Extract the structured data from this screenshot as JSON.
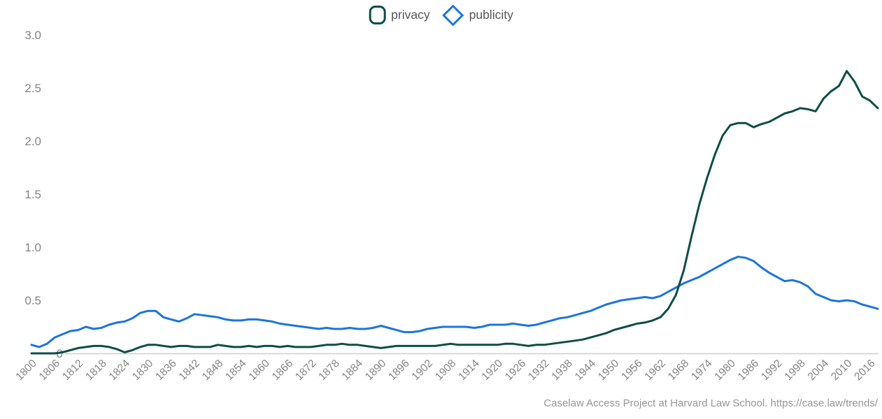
{
  "legend": {
    "items": [
      {
        "label": "privacy",
        "color": "#0d4e44",
        "marker": "rounded-square-outline"
      },
      {
        "label": "publicity",
        "color": "#1d73e0",
        "marker": "diamond-outline"
      }
    ]
  },
  "footer": {
    "text": "Caselaw Access Project at Harvard Law School. https://case.law/trends/"
  },
  "chart_data": {
    "type": "line",
    "title": "",
    "xlabel": "",
    "ylabel": "",
    "xlim": [
      1800,
      2018
    ],
    "ylim": [
      0,
      3.0
    ],
    "grid": false,
    "legend_position": "top-center",
    "axis_color": "#cccccc",
    "tick_label_color": "#848484",
    "y_ticks": [
      0,
      0.5,
      1.0,
      1.5,
      2.0,
      2.5,
      3.0
    ],
    "y_tick_labels": [
      "0",
      "0.5",
      "1.0",
      "1.5",
      "2.0",
      "2.5",
      "3.0"
    ],
    "x_ticks": [
      1800,
      1806,
      1812,
      1818,
      1824,
      1830,
      1836,
      1842,
      1848,
      1854,
      1860,
      1866,
      1872,
      1878,
      1884,
      1890,
      1896,
      1902,
      1908,
      1914,
      1920,
      1926,
      1932,
      1938,
      1944,
      1950,
      1956,
      1962,
      1968,
      1974,
      1980,
      1986,
      1992,
      1998,
      2004,
      2010,
      2016
    ],
    "x": [
      1800,
      1802,
      1804,
      1806,
      1808,
      1810,
      1812,
      1814,
      1816,
      1818,
      1820,
      1822,
      1824,
      1826,
      1828,
      1830,
      1832,
      1834,
      1836,
      1838,
      1840,
      1842,
      1844,
      1846,
      1848,
      1850,
      1852,
      1854,
      1856,
      1858,
      1860,
      1862,
      1864,
      1866,
      1868,
      1870,
      1872,
      1874,
      1876,
      1878,
      1880,
      1882,
      1884,
      1886,
      1888,
      1890,
      1892,
      1894,
      1896,
      1898,
      1900,
      1902,
      1904,
      1906,
      1908,
      1910,
      1912,
      1914,
      1916,
      1918,
      1920,
      1922,
      1924,
      1926,
      1928,
      1930,
      1932,
      1934,
      1936,
      1938,
      1940,
      1942,
      1944,
      1946,
      1948,
      1950,
      1952,
      1954,
      1956,
      1958,
      1960,
      1962,
      1964,
      1966,
      1968,
      1970,
      1972,
      1974,
      1976,
      1978,
      1980,
      1982,
      1984,
      1986,
      1988,
      1990,
      1992,
      1994,
      1996,
      1998,
      2000,
      2002,
      2004,
      2006,
      2008,
      2010,
      2012,
      2014,
      2016,
      2018
    ],
    "series": [
      {
        "name": "privacy",
        "color": "#0d4e44",
        "values": [
          0.0,
          0.0,
          0.0,
          0.0,
          0.01,
          0.03,
          0.05,
          0.06,
          0.07,
          0.07,
          0.06,
          0.04,
          0.01,
          0.03,
          0.06,
          0.08,
          0.08,
          0.07,
          0.06,
          0.07,
          0.07,
          0.06,
          0.06,
          0.06,
          0.08,
          0.07,
          0.06,
          0.06,
          0.07,
          0.06,
          0.07,
          0.07,
          0.06,
          0.07,
          0.06,
          0.06,
          0.06,
          0.07,
          0.08,
          0.08,
          0.09,
          0.08,
          0.08,
          0.07,
          0.06,
          0.05,
          0.06,
          0.07,
          0.07,
          0.07,
          0.07,
          0.07,
          0.07,
          0.08,
          0.09,
          0.08,
          0.08,
          0.08,
          0.08,
          0.08,
          0.08,
          0.09,
          0.09,
          0.08,
          0.07,
          0.08,
          0.08,
          0.09,
          0.1,
          0.11,
          0.12,
          0.13,
          0.15,
          0.17,
          0.19,
          0.22,
          0.24,
          0.26,
          0.28,
          0.29,
          0.31,
          0.34,
          0.42,
          0.55,
          0.78,
          1.1,
          1.4,
          1.65,
          1.87,
          2.05,
          2.15,
          2.17,
          2.17,
          2.13,
          2.16,
          2.18,
          2.22,
          2.26,
          2.28,
          2.31,
          2.3,
          2.28,
          2.4,
          2.47,
          2.52,
          2.66,
          2.56,
          2.42,
          2.38,
          2.31
        ]
      },
      {
        "name": "publicity",
        "color": "#1d73e0",
        "values": [
          0.08,
          0.06,
          0.09,
          0.15,
          0.18,
          0.21,
          0.22,
          0.25,
          0.23,
          0.24,
          0.27,
          0.29,
          0.3,
          0.33,
          0.38,
          0.4,
          0.4,
          0.34,
          0.32,
          0.3,
          0.33,
          0.37,
          0.36,
          0.35,
          0.34,
          0.32,
          0.31,
          0.31,
          0.32,
          0.32,
          0.31,
          0.3,
          0.28,
          0.27,
          0.26,
          0.25,
          0.24,
          0.23,
          0.24,
          0.23,
          0.23,
          0.24,
          0.23,
          0.23,
          0.24,
          0.26,
          0.24,
          0.22,
          0.2,
          0.2,
          0.21,
          0.23,
          0.24,
          0.25,
          0.25,
          0.25,
          0.25,
          0.24,
          0.25,
          0.27,
          0.27,
          0.27,
          0.28,
          0.27,
          0.26,
          0.27,
          0.29,
          0.31,
          0.33,
          0.34,
          0.36,
          0.38,
          0.4,
          0.43,
          0.46,
          0.48,
          0.5,
          0.51,
          0.52,
          0.53,
          0.52,
          0.54,
          0.58,
          0.62,
          0.66,
          0.69,
          0.72,
          0.76,
          0.8,
          0.84,
          0.88,
          0.91,
          0.9,
          0.87,
          0.81,
          0.76,
          0.72,
          0.68,
          0.69,
          0.67,
          0.63,
          0.56,
          0.53,
          0.5,
          0.49,
          0.5,
          0.49,
          0.46,
          0.44,
          0.42
        ]
      }
    ]
  }
}
